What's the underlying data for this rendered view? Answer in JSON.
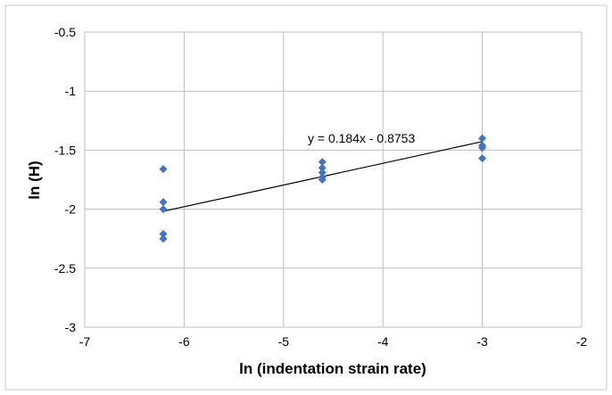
{
  "chart_data": {
    "type": "scatter",
    "title": "",
    "xlabel": "ln (indentation strain rate)",
    "ylabel": "ln (H)",
    "xlim": [
      -7,
      -2
    ],
    "ylim": [
      -3,
      -0.5
    ],
    "x_ticks": [
      -7,
      -6,
      -5,
      -4,
      -3,
      -2
    ],
    "y_ticks": [
      -3,
      -2.5,
      -2,
      -1.5,
      -1,
      -0.5
    ],
    "x_tick_labels": [
      "-7",
      "-6",
      "-5",
      "-4",
      "-3",
      "-2"
    ],
    "y_tick_labels": [
      "-3",
      "-2.5",
      "-2",
      "-1.5",
      "-1",
      "-0.5"
    ],
    "grid": true,
    "legend": "none",
    "marker_color": "#4472C4",
    "series": [
      {
        "marker": "diamond",
        "points": [
          {
            "x": -6.21,
            "y": -1.66
          },
          {
            "x": -6.21,
            "y": -1.94
          },
          {
            "x": -6.21,
            "y": -2.0
          },
          {
            "x": -6.21,
            "y": -2.21
          },
          {
            "x": -6.21,
            "y": -2.25
          },
          {
            "x": -4.61,
            "y": -1.6
          },
          {
            "x": -4.61,
            "y": -1.65
          },
          {
            "x": -4.61,
            "y": -1.69
          },
          {
            "x": -4.61,
            "y": -1.73
          },
          {
            "x": -4.61,
            "y": -1.75
          },
          {
            "x": -3.0,
            "y": -1.4
          },
          {
            "x": -3.0,
            "y": -1.46
          },
          {
            "x": -3.0,
            "y": -1.48
          },
          {
            "x": -3.0,
            "y": -1.57
          }
        ]
      }
    ],
    "trendline": {
      "slope": 0.184,
      "intercept": -0.8753,
      "x_range": [
        -6.21,
        -3.0
      ],
      "equation_label": "y = 0.184x - 0.8753",
      "color": "#000000"
    }
  }
}
